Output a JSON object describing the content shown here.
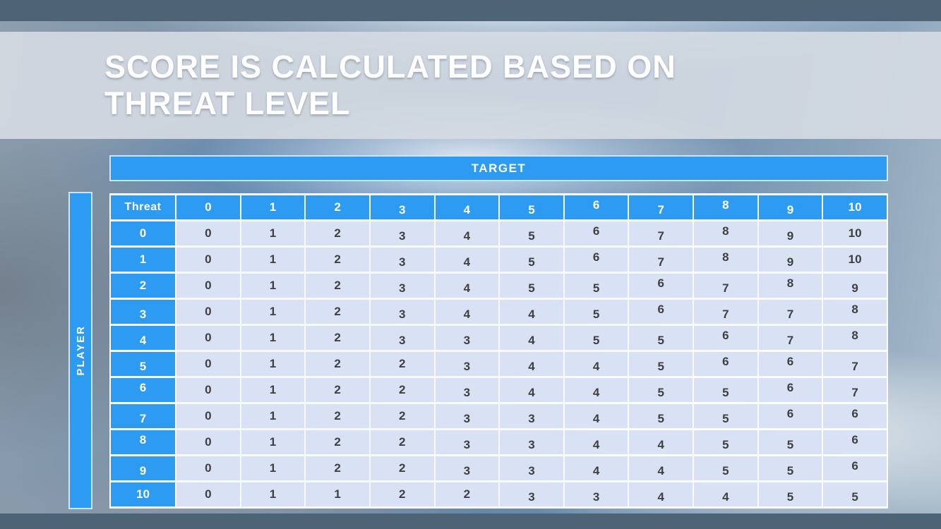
{
  "slide": {
    "title_line1": "SCORE IS CALCULATED BASED ON",
    "title_line2": "THREAT LEVEL"
  },
  "matrix": {
    "target_label": "TARGET",
    "player_label": "PLAYER",
    "corner_label": "Threat",
    "column_headers": [
      "0",
      "1",
      "2",
      "3",
      "4",
      "5",
      "6",
      "7",
      "8",
      "9",
      "10"
    ],
    "rows": [
      {
        "label": "0",
        "values": [
          "0",
          "1",
          "2",
          "3",
          "4",
          "5",
          "6",
          "7",
          "8",
          "9",
          "10"
        ]
      },
      {
        "label": "1",
        "values": [
          "0",
          "1",
          "2",
          "3",
          "4",
          "5",
          "6",
          "7",
          "8",
          "9",
          "10"
        ]
      },
      {
        "label": "2",
        "values": [
          "0",
          "1",
          "2",
          "3",
          "4",
          "5",
          "5",
          "6",
          "7",
          "8",
          "9"
        ]
      },
      {
        "label": "3",
        "values": [
          "0",
          "1",
          "2",
          "3",
          "4",
          "4",
          "5",
          "6",
          "7",
          "7",
          "8"
        ]
      },
      {
        "label": "4",
        "values": [
          "0",
          "1",
          "2",
          "3",
          "3",
          "4",
          "5",
          "5",
          "6",
          "7",
          "8"
        ]
      },
      {
        "label": "5",
        "values": [
          "0",
          "1",
          "2",
          "2",
          "3",
          "4",
          "4",
          "5",
          "6",
          "6",
          "7"
        ]
      },
      {
        "label": "6",
        "values": [
          "0",
          "1",
          "2",
          "2",
          "3",
          "4",
          "4",
          "5",
          "5",
          "6",
          "7"
        ]
      },
      {
        "label": "7",
        "values": [
          "0",
          "1",
          "2",
          "2",
          "3",
          "3",
          "4",
          "5",
          "5",
          "6",
          "6"
        ]
      },
      {
        "label": "8",
        "values": [
          "0",
          "1",
          "2",
          "2",
          "3",
          "3",
          "4",
          "4",
          "5",
          "5",
          "6"
        ]
      },
      {
        "label": "9",
        "values": [
          "0",
          "1",
          "2",
          "2",
          "3",
          "3",
          "4",
          "4",
          "5",
          "5",
          "6"
        ]
      },
      {
        "label": "10",
        "values": [
          "0",
          "1",
          "1",
          "2",
          "2",
          "3",
          "3",
          "4",
          "4",
          "5",
          "5"
        ]
      }
    ]
  },
  "colors": {
    "accent_blue": "#2E9BF2",
    "cell_fill": "#D9E2F5",
    "cell_text": "#3F3F3F",
    "frame_slate": "#4D6477",
    "banner_gray": "#D6DCE3"
  }
}
